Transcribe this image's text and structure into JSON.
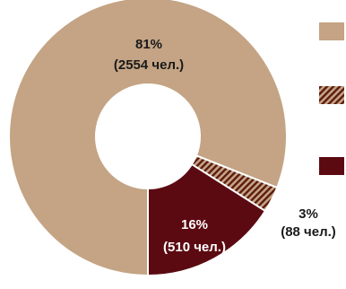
{
  "chart_data": {
    "type": "pie",
    "donut": true,
    "title": "",
    "legend_placement": "right",
    "slices": [
      {
        "value": 81,
        "count": 2554,
        "percent_label": "81%",
        "count_label": "(2554 чел.)",
        "fill": "solid",
        "color": "#c4a484"
      },
      {
        "value": 3,
        "count": 88,
        "percent_label": "3%",
        "count_label": "(88 чел.)",
        "fill": "hatched",
        "color": "#c4a484",
        "hatch_color": "#5c1a10"
      },
      {
        "value": 16,
        "count": 510,
        "percent_label": "16%",
        "count_label": "(510 чел.)",
        "fill": "solid",
        "color": "#5c0a12"
      }
    ]
  }
}
